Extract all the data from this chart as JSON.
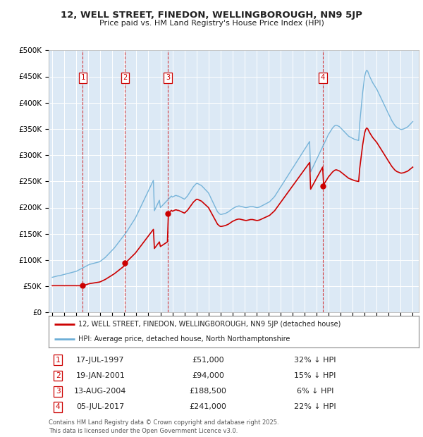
{
  "title1": "12, WELL STREET, FINEDON, WELLINGBOROUGH, NN9 5JP",
  "title2": "Price paid vs. HM Land Registry's House Price Index (HPI)",
  "background_color": "#dce9f5",
  "ylim": [
    0,
    500000
  ],
  "yticks": [
    0,
    50000,
    100000,
    150000,
    200000,
    250000,
    300000,
    350000,
    400000,
    450000,
    500000
  ],
  "ytick_labels": [
    "£0",
    "£50K",
    "£100K",
    "£150K",
    "£200K",
    "£250K",
    "£300K",
    "£350K",
    "£400K",
    "£450K",
    "£500K"
  ],
  "xlim_start": 1994.7,
  "xlim_end": 2025.5,
  "xticks": [
    1995,
    1996,
    1997,
    1998,
    1999,
    2000,
    2001,
    2002,
    2003,
    2004,
    2005,
    2006,
    2007,
    2008,
    2009,
    2010,
    2011,
    2012,
    2013,
    2014,
    2015,
    2016,
    2017,
    2018,
    2019,
    2020,
    2021,
    2022,
    2023,
    2024,
    2025
  ],
  "sale_dates": [
    1997.54,
    2001.05,
    2004.62,
    2017.51
  ],
  "sale_prices": [
    51000,
    94000,
    188500,
    241000
  ],
  "sale_labels": [
    "1",
    "2",
    "3",
    "4"
  ],
  "sale_color": "#cc0000",
  "hpi_color": "#6baed6",
  "legend_line1": "12, WELL STREET, FINEDON, WELLINGBOROUGH, NN9 5JP (detached house)",
  "legend_line2": "HPI: Average price, detached house, North Northamptonshire",
  "table_data": [
    [
      "1",
      "17-JUL-1997",
      "£51,000",
      "32% ↓ HPI"
    ],
    [
      "2",
      "19-JAN-2001",
      "£94,000",
      "15% ↓ HPI"
    ],
    [
      "3",
      "13-AUG-2004",
      "£188,500",
      "6% ↓ HPI"
    ],
    [
      "4",
      "05-JUL-2017",
      "£241,000",
      "22% ↓ HPI"
    ]
  ],
  "footer": "Contains HM Land Registry data © Crown copyright and database right 2025.\nThis data is licensed under the Open Government Licence v3.0.",
  "hpi_data": {
    "years": [
      1995.0,
      1995.083,
      1995.167,
      1995.25,
      1995.333,
      1995.417,
      1995.5,
      1995.583,
      1995.667,
      1995.75,
      1995.833,
      1995.917,
      1996.0,
      1996.083,
      1996.167,
      1996.25,
      1996.333,
      1996.417,
      1996.5,
      1996.583,
      1996.667,
      1996.75,
      1996.833,
      1996.917,
      1997.0,
      1997.083,
      1997.167,
      1997.25,
      1997.333,
      1997.417,
      1997.5,
      1997.583,
      1997.667,
      1997.75,
      1997.833,
      1997.917,
      1998.0,
      1998.083,
      1998.167,
      1998.25,
      1998.333,
      1998.417,
      1998.5,
      1998.583,
      1998.667,
      1998.75,
      1998.833,
      1998.917,
      1999.0,
      1999.083,
      1999.167,
      1999.25,
      1999.333,
      1999.417,
      1999.5,
      1999.583,
      1999.667,
      1999.75,
      1999.833,
      1999.917,
      2000.0,
      2000.083,
      2000.167,
      2000.25,
      2000.333,
      2000.417,
      2000.5,
      2000.583,
      2000.667,
      2000.75,
      2000.833,
      2000.917,
      2001.0,
      2001.083,
      2001.167,
      2001.25,
      2001.333,
      2001.417,
      2001.5,
      2001.583,
      2001.667,
      2001.75,
      2001.833,
      2001.917,
      2002.0,
      2002.083,
      2002.167,
      2002.25,
      2002.333,
      2002.417,
      2002.5,
      2002.583,
      2002.667,
      2002.75,
      2002.833,
      2002.917,
      2003.0,
      2003.083,
      2003.167,
      2003.25,
      2003.333,
      2003.417,
      2003.5,
      2003.583,
      2003.667,
      2003.75,
      2003.833,
      2003.917,
      2004.0,
      2004.083,
      2004.167,
      2004.25,
      2004.333,
      2004.417,
      2004.5,
      2004.583,
      2004.667,
      2004.75,
      2004.833,
      2004.917,
      2005.0,
      2005.083,
      2005.167,
      2005.25,
      2005.333,
      2005.417,
      2005.5,
      2005.583,
      2005.667,
      2005.75,
      2005.833,
      2005.917,
      2006.0,
      2006.083,
      2006.167,
      2006.25,
      2006.333,
      2006.417,
      2006.5,
      2006.583,
      2006.667,
      2006.75,
      2006.833,
      2006.917,
      2007.0,
      2007.083,
      2007.167,
      2007.25,
      2007.333,
      2007.417,
      2007.5,
      2007.583,
      2007.667,
      2007.75,
      2007.833,
      2007.917,
      2008.0,
      2008.083,
      2008.167,
      2008.25,
      2008.333,
      2008.417,
      2008.5,
      2008.583,
      2008.667,
      2008.75,
      2008.833,
      2008.917,
      2009.0,
      2009.083,
      2009.167,
      2009.25,
      2009.333,
      2009.417,
      2009.5,
      2009.583,
      2009.667,
      2009.75,
      2009.833,
      2009.917,
      2010.0,
      2010.083,
      2010.167,
      2010.25,
      2010.333,
      2010.417,
      2010.5,
      2010.583,
      2010.667,
      2010.75,
      2010.833,
      2010.917,
      2011.0,
      2011.083,
      2011.167,
      2011.25,
      2011.333,
      2011.417,
      2011.5,
      2011.583,
      2011.667,
      2011.75,
      2011.833,
      2011.917,
      2012.0,
      2012.083,
      2012.167,
      2012.25,
      2012.333,
      2012.417,
      2012.5,
      2012.583,
      2012.667,
      2012.75,
      2012.833,
      2012.917,
      2013.0,
      2013.083,
      2013.167,
      2013.25,
      2013.333,
      2013.417,
      2013.5,
      2013.583,
      2013.667,
      2013.75,
      2013.833,
      2013.917,
      2014.0,
      2014.083,
      2014.167,
      2014.25,
      2014.333,
      2014.417,
      2014.5,
      2014.583,
      2014.667,
      2014.75,
      2014.833,
      2014.917,
      2015.0,
      2015.083,
      2015.167,
      2015.25,
      2015.333,
      2015.417,
      2015.5,
      2015.583,
      2015.667,
      2015.75,
      2015.833,
      2015.917,
      2016.0,
      2016.083,
      2016.167,
      2016.25,
      2016.333,
      2016.417,
      2016.5,
      2016.583,
      2016.667,
      2016.75,
      2016.833,
      2016.917,
      2017.0,
      2017.083,
      2017.167,
      2017.25,
      2017.333,
      2017.417,
      2017.5,
      2017.583,
      2017.667,
      2017.75,
      2017.833,
      2017.917,
      2018.0,
      2018.083,
      2018.167,
      2018.25,
      2018.333,
      2018.417,
      2018.5,
      2018.583,
      2018.667,
      2018.75,
      2018.833,
      2018.917,
      2019.0,
      2019.083,
      2019.167,
      2019.25,
      2019.333,
      2019.417,
      2019.5,
      2019.583,
      2019.667,
      2019.75,
      2019.833,
      2019.917,
      2020.0,
      2020.083,
      2020.167,
      2020.25,
      2020.333,
      2020.417,
      2020.5,
      2020.583,
      2020.667,
      2020.75,
      2020.833,
      2020.917,
      2021.0,
      2021.083,
      2021.167,
      2021.25,
      2021.333,
      2021.417,
      2021.5,
      2021.583,
      2021.667,
      2021.75,
      2021.833,
      2021.917,
      2022.0,
      2022.083,
      2022.167,
      2022.25,
      2022.333,
      2022.417,
      2022.5,
      2022.583,
      2022.667,
      2022.75,
      2022.833,
      2022.917,
      2023.0,
      2023.083,
      2023.167,
      2023.25,
      2023.333,
      2023.417,
      2023.5,
      2023.583,
      2023.667,
      2023.75,
      2023.833,
      2023.917,
      2024.0,
      2024.083,
      2024.167,
      2024.25,
      2024.333,
      2024.417,
      2024.5,
      2024.583,
      2024.667,
      2024.75,
      2024.833,
      2024.917,
      2025.0
    ],
    "values": [
      67000,
      67500,
      68000,
      68500,
      69000,
      69500,
      70000,
      70000,
      70500,
      71000,
      71500,
      72000,
      72500,
      73000,
      73500,
      74000,
      74500,
      75000,
      75500,
      76000,
      76500,
      77000,
      77500,
      78000,
      78500,
      79500,
      80500,
      81500,
      82500,
      83500,
      84500,
      85500,
      86500,
      87500,
      88500,
      89500,
      90500,
      91500,
      92000,
      92500,
      93000,
      93500,
      94000,
      94500,
      95000,
      95500,
      96000,
      96500,
      97500,
      99000,
      100500,
      102000,
      103500,
      105000,
      107000,
      109000,
      111000,
      113000,
      115000,
      117000,
      119000,
      121000,
      123000,
      125500,
      128000,
      130500,
      133000,
      135500,
      138000,
      140500,
      143000,
      145500,
      148000,
      150500,
      153000,
      156000,
      159000,
      162000,
      165000,
      168000,
      171000,
      174000,
      177000,
      180000,
      184000,
      188000,
      192000,
      196000,
      200000,
      204000,
      208000,
      212000,
      216000,
      220000,
      224000,
      228000,
      232000,
      236000,
      240000,
      244000,
      248000,
      252000,
      194000,
      198000,
      202000,
      206000,
      210000,
      214000,
      200000,
      202000,
      204000,
      206000,
      208000,
      210000,
      212000,
      214000,
      216000,
      218000,
      220000,
      222000,
      220000,
      221000,
      222000,
      223000,
      223000,
      222000,
      222000,
      221000,
      220000,
      219000,
      218000,
      217000,
      216000,
      218000,
      220000,
      222000,
      225000,
      228000,
      231000,
      234000,
      237000,
      240000,
      242000,
      244000,
      246000,
      246000,
      245000,
      244000,
      243000,
      242000,
      240000,
      238000,
      236000,
      234000,
      232000,
      230000,
      228000,
      224000,
      220000,
      216000,
      212000,
      208000,
      204000,
      200000,
      196000,
      192000,
      190000,
      188000,
      187000,
      187000,
      187500,
      188000,
      188500,
      189000,
      190000,
      191000,
      192000,
      193500,
      195000,
      196500,
      198000,
      199000,
      200000,
      201000,
      202000,
      202500,
      203000,
      203000,
      202500,
      202000,
      201500,
      201000,
      200500,
      200000,
      200000,
      200500,
      201000,
      201500,
      202000,
      202000,
      202000,
      201500,
      201000,
      200500,
      200000,
      200000,
      200500,
      201000,
      202000,
      203000,
      204000,
      205000,
      206000,
      207000,
      208000,
      209000,
      210000,
      211000,
      213000,
      215000,
      217000,
      219000,
      221000,
      224000,
      227000,
      230000,
      233000,
      236000,
      239000,
      242000,
      245000,
      248000,
      251000,
      254000,
      257000,
      260000,
      263000,
      266000,
      269000,
      272000,
      275000,
      278000,
      281000,
      284000,
      287000,
      290000,
      293000,
      296000,
      299000,
      302000,
      305000,
      308000,
      311000,
      314000,
      317000,
      320000,
      323000,
      326000,
      268000,
      272000,
      276000,
      280000,
      284000,
      288000,
      292000,
      296000,
      300000,
      304000,
      308000,
      312000,
      316000,
      320000,
      324000,
      328000,
      332000,
      336000,
      340000,
      343000,
      346000,
      349000,
      352000,
      354000,
      356000,
      357000,
      357000,
      356000,
      355000,
      354000,
      352000,
      350000,
      348000,
      346000,
      344000,
      342000,
      340000,
      338000,
      336000,
      335000,
      334000,
      333000,
      332000,
      331000,
      330000,
      329500,
      329000,
      328500,
      328000,
      360000,
      380000,
      400000,
      420000,
      435000,
      450000,
      458000,
      462000,
      460000,
      455000,
      450000,
      446000,
      442000,
      438000,
      435000,
      432000,
      429000,
      426000,
      422000,
      418000,
      414000,
      410000,
      406000,
      402000,
      398000,
      394000,
      390000,
      386000,
      382000,
      378000,
      374000,
      370000,
      366000,
      363000,
      360000,
      357000,
      355000,
      353000,
      352000,
      351000,
      350000,
      349000,
      349000,
      349500,
      350000,
      351000,
      352000,
      353000,
      354000,
      356000,
      358000,
      360000,
      362000,
      364000
    ]
  }
}
